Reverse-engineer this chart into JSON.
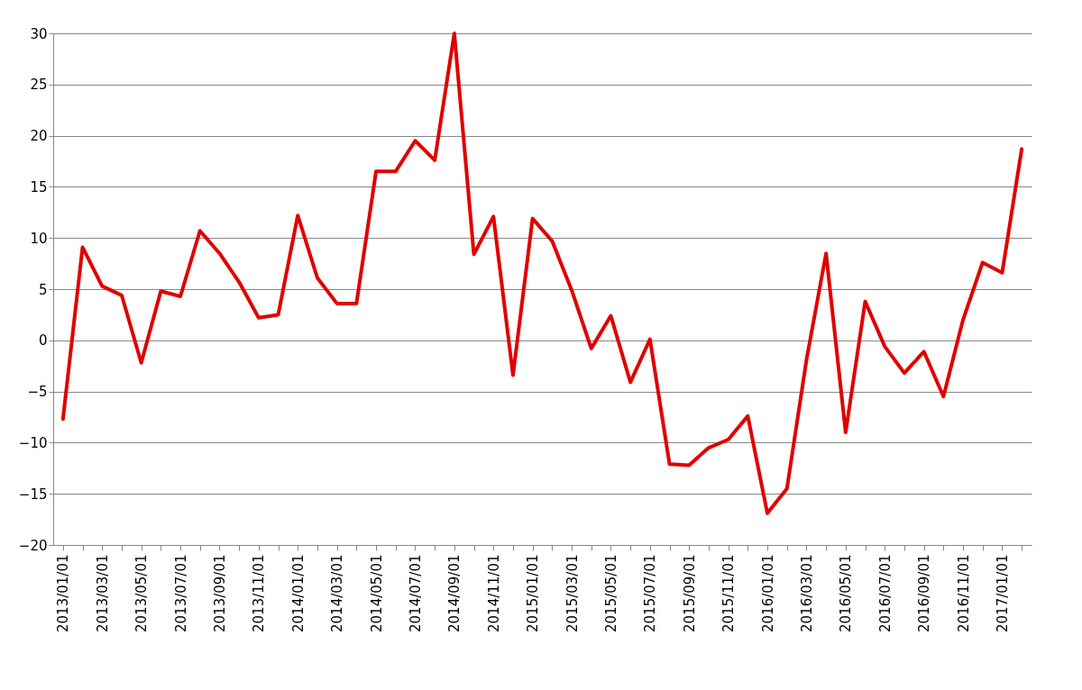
{
  "chart_data": {
    "type": "line",
    "categories": [
      "2013/01/01",
      null,
      "2013/03/01",
      null,
      "2013/05/01",
      null,
      "2013/07/01",
      null,
      "2013/09/01",
      null,
      "2013/11/01",
      null,
      "2014/01/01",
      null,
      "2014/03/01",
      null,
      "2014/05/01",
      null,
      "2014/07/01",
      null,
      "2014/09/01",
      null,
      "2014/11/01",
      null,
      "2015/01/01",
      null,
      "2015/03/01",
      null,
      "2015/05/01",
      null,
      "2015/07/01",
      null,
      "2015/09/01",
      null,
      "2015/11/01",
      null,
      "2016/01/01",
      null,
      "2016/03/01",
      null,
      "2016/05/01",
      null,
      "2016/07/01",
      null,
      "2016/09/01",
      null,
      "2016/11/01",
      null,
      "2017/01/01",
      null
    ],
    "series": [
      {
        "color": "#e00000",
        "values": [
          -7.7,
          9.1,
          5.3,
          4.4,
          -2.2,
          4.8,
          4.3,
          10.7,
          8.5,
          5.7,
          2.2,
          2.5,
          12.2,
          6.1,
          3.6,
          3.6,
          16.5,
          16.5,
          19.5,
          17.6,
          30,
          8.4,
          12.1,
          -3.4,
          11.9,
          9.7,
          4.9,
          -0.8,
          2.4,
          -4.1,
          0.1,
          -12.1,
          -12.2,
          -10.5,
          -9.7,
          -7.4,
          -16.9,
          -14.5,
          -1.9,
          8.5,
          -9.0,
          3.8,
          -0.6,
          -3.2,
          -1.1,
          -5.5,
          2.0,
          7.6,
          6.6,
          18.7
        ]
      }
    ],
    "ylim": [
      -20,
      30
    ],
    "yticks": [
      -20,
      -15,
      -10,
      -5,
      0,
      5,
      10,
      15,
      20,
      25,
      30
    ],
    "grid": "y",
    "legend": false,
    "marker": "none",
    "line_style": "solid"
  }
}
